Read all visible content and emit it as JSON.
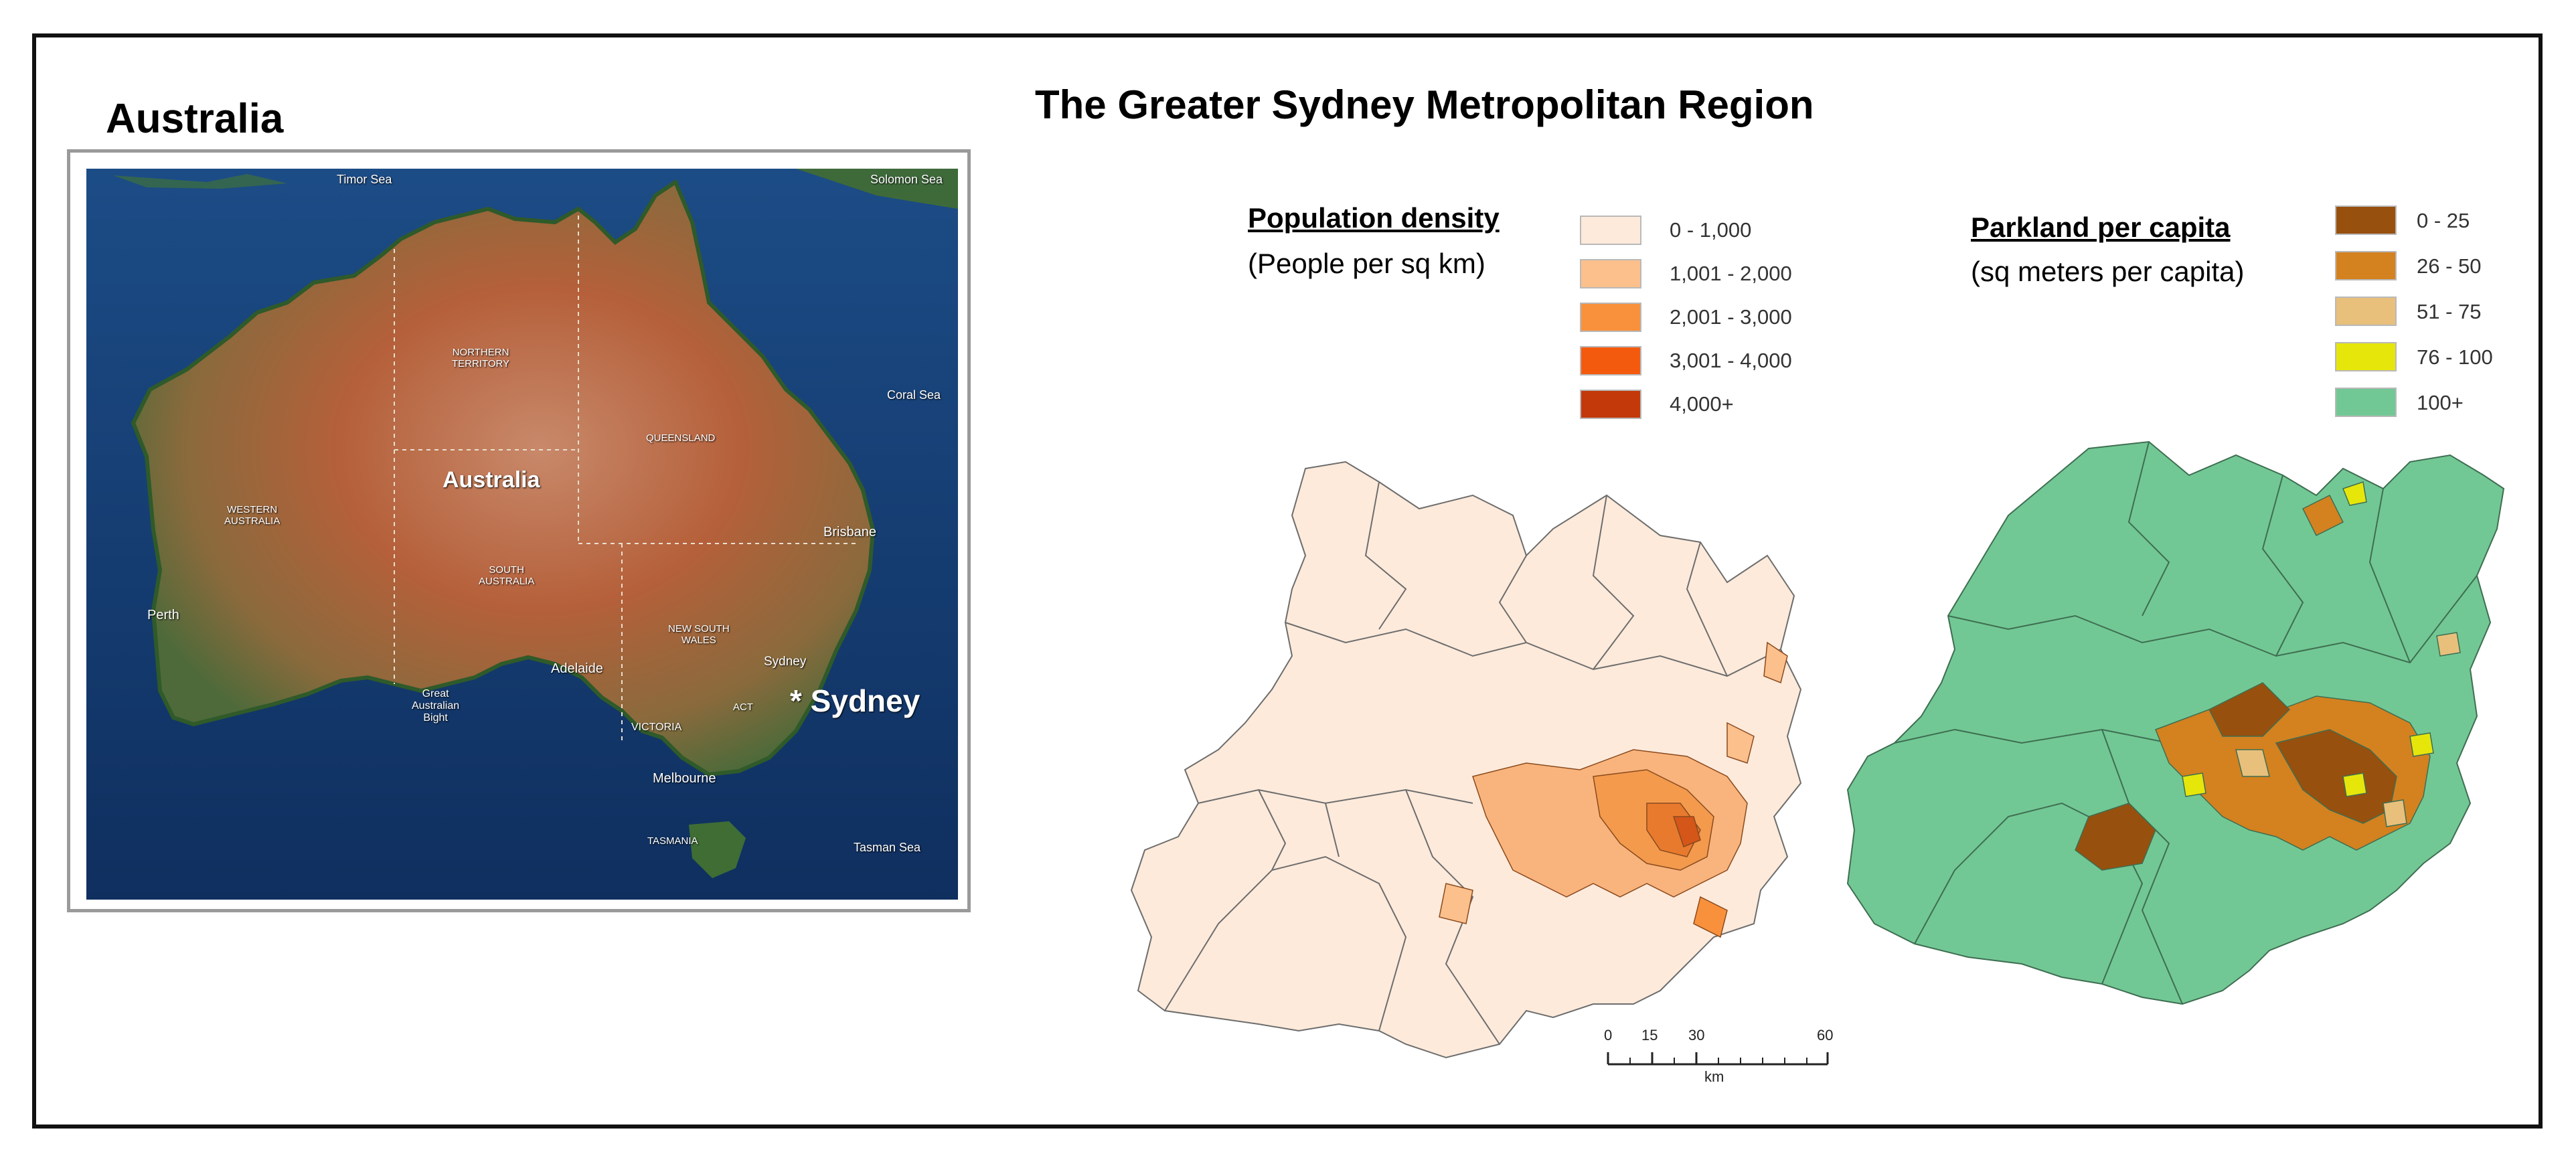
{
  "left_title": "Australia",
  "main_title": "The Greater Sydney Metropolitan Region",
  "satellite_map": {
    "labels": {
      "timor_sea": "Timor Sea",
      "solomon_sea": "Solomon Sea",
      "coral_sea": "Coral Sea",
      "tasman_sea": "Tasman Sea",
      "northern_territory": "NORTHERN\nTERRITORY",
      "queensland": "QUEENSLAND",
      "western_australia": "WESTERN\nAUSTRALIA",
      "south_australia": "SOUTH\nAUSTRALIA",
      "new_south_wales": "NEW SOUTH\nWALES",
      "victoria": "VICTORIA",
      "tasmania": "TASMANIA",
      "act": "ACT",
      "australia": "Australia",
      "perth": "Perth",
      "adelaide": "Adelaide",
      "brisbane": "Brisbane",
      "sydney_small": "Sydney",
      "melbourne": "Melbourne",
      "great_australian_bight": "Great\nAustralian\nBight",
      "sydney_marker": "* Sydney"
    }
  },
  "population_legend": {
    "heading": "Population density",
    "subheading": "(People per sq km)",
    "items": [
      {
        "label": "0 - 1,000",
        "color": "#fdeadb"
      },
      {
        "label": "1,001 - 2,000",
        "color": "#fcc08c"
      },
      {
        "label": "2,001 - 3,000",
        "color": "#f9913c"
      },
      {
        "label": "3,001 - 4,000",
        "color": "#f45a0e"
      },
      {
        "label": "4,000+",
        "color": "#c3390a"
      }
    ]
  },
  "parkland_legend": {
    "heading": "Parkland per capita",
    "subheading": "(sq meters per capita)",
    "items": [
      {
        "label": "0 - 25",
        "color": "#97500e"
      },
      {
        "label": "26 - 50",
        "color": "#d4811f"
      },
      {
        "label": "51 - 75",
        "color": "#e8c07c"
      },
      {
        "label": "76 - 100",
        "color": "#e6e60a"
      },
      {
        "label": "100+",
        "color": "#72c894"
      }
    ]
  },
  "scale_bar": {
    "ticks": [
      "0",
      "15",
      "30",
      "60"
    ],
    "unit": "km"
  }
}
